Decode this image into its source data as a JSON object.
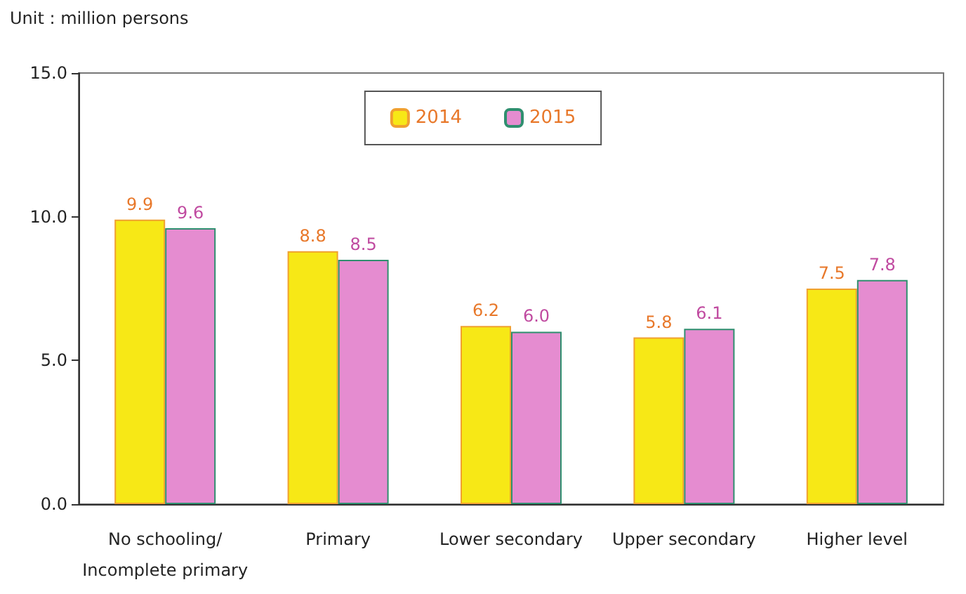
{
  "chart_data": {
    "type": "bar",
    "subtitle": "Unit : million persons",
    "categories": [
      "No schooling/\nIncomplete primary",
      "Primary",
      "Lower secondary",
      "Upper secondary",
      "Higher level"
    ],
    "series": [
      {
        "name": "2014",
        "color": "#f7e816",
        "values": [
          9.9,
          8.8,
          6.2,
          5.8,
          7.5
        ],
        "value_labels": [
          "9.9",
          "8.8",
          "6.2",
          "5.8",
          "7.5"
        ]
      },
      {
        "name": "2015",
        "color": "#e58cd0",
        "values": [
          9.6,
          8.5,
          6.0,
          6.1,
          7.8
        ],
        "value_labels": [
          "9.6",
          "8.5",
          "6.0",
          "6.1",
          "7.8"
        ]
      }
    ],
    "ylim": [
      0,
      15
    ],
    "yticks": [
      {
        "value": 0,
        "label": "0.0"
      },
      {
        "value": 5,
        "label": "5.0"
      },
      {
        "value": 10,
        "label": "10.0"
      },
      {
        "value": 15,
        "label": "15.0"
      }
    ],
    "grid": false,
    "legend": "top"
  }
}
